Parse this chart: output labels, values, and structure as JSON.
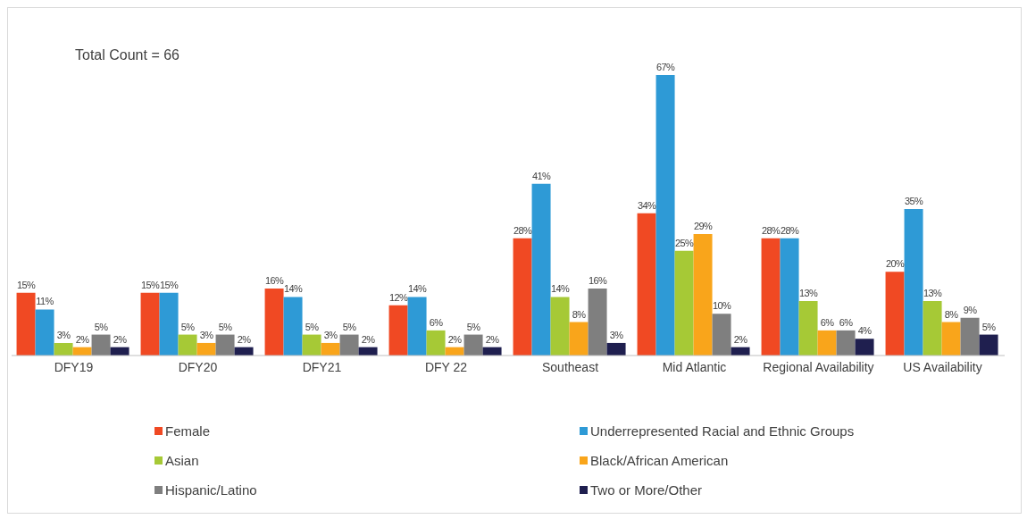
{
  "chart_data": {
    "type": "bar",
    "categories": [
      "DFY19",
      "DFY20",
      "DFY21",
      "DFY 22",
      "Southeast",
      "Mid Atlantic",
      "Regional Availability",
      "US Availability"
    ],
    "series": [
      {
        "name": "Female",
        "color": "#f04923",
        "values": [
          15,
          15,
          16,
          12,
          28,
          34,
          28,
          20
        ],
        "value_labels": [
          "15%",
          "15%",
          "16%",
          "12%",
          "28%",
          "34%",
          "28%",
          "20%"
        ]
      },
      {
        "name": "Underrepresented Racial and Ethnic Groups",
        "color": "#2e9ad6",
        "values": [
          11,
          15,
          14,
          14,
          41,
          67,
          28,
          35
        ],
        "value_labels": [
          "11%",
          "15%",
          "14%",
          "14%",
          "41%",
          "67%",
          "28%",
          "35%"
        ]
      },
      {
        "name": "Asian",
        "color": "#a6c936",
        "values": [
          3,
          5,
          5,
          6,
          14,
          25,
          13,
          13
        ],
        "value_labels": [
          "3%",
          "5%",
          "5%",
          "6%",
          "14%",
          "25%",
          "13%",
          "13%"
        ]
      },
      {
        "name": "Black/African American",
        "color": "#f9a51b",
        "values": [
          2,
          3,
          3,
          2,
          8,
          29,
          6,
          8
        ],
        "value_labels": [
          "2%",
          "3%",
          "3%",
          "2%",
          "8%",
          "29%",
          "6%",
          "8%"
        ]
      },
      {
        "name": "Hispanic/Latino",
        "color": "#7f7f7f",
        "values": [
          5,
          5,
          5,
          5,
          16,
          10,
          6,
          9
        ],
        "value_labels": [
          "5%",
          "5%",
          "5%",
          "5%",
          "16%",
          "10%",
          "6%",
          "9%"
        ]
      },
      {
        "name": "Two or More/Other",
        "color": "#1f1f4f",
        "values": [
          2,
          2,
          2,
          2,
          3,
          2,
          4,
          5
        ],
        "value_labels": [
          "2%",
          "2%",
          "2%",
          "2%",
          "3%",
          "2%",
          "4%",
          "5%"
        ]
      }
    ],
    "annotations": [
      "Total Count = 66"
    ],
    "legend": "bottom",
    "grid": false
  }
}
